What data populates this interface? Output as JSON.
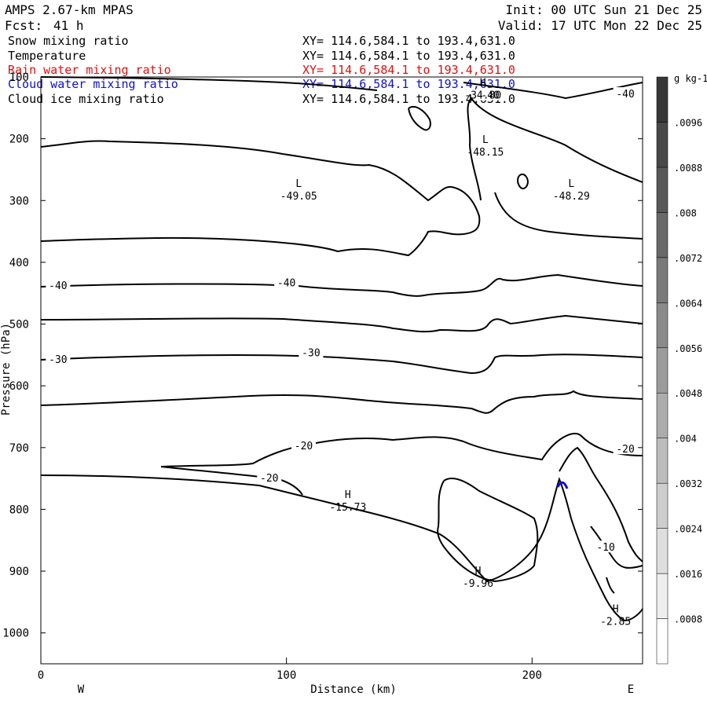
{
  "header": {
    "model": "AMPS 2.67-km MPAS",
    "fcst_label": "Fcst:",
    "fcst_hours": "41 h",
    "init": "Init: 00 UTC Sun 21 Dec 25",
    "valid": "Valid: 17 UTC Mon 22 Dec 25"
  },
  "fields": [
    {
      "name": "Snow mixing ratio",
      "range": "XY= 114.6,584.1 to 193.4,631.0",
      "color": "#000000"
    },
    {
      "name": "Temperature",
      "range": "XY= 114.6,584.1 to 193.4,631.0",
      "color": "#000000"
    },
    {
      "name": "Rain water mixing ratio",
      "range": "XY= 114.6,584.1 to 193.4,631.0",
      "color": "#e01010"
    },
    {
      "name": "Cloud water mixing ratio",
      "range": "XY= 114.6,584.1 to 193.4,631.0",
      "color": "#1010d0"
    },
    {
      "name": "Cloud ice mixing ratio",
      "range": "XY= 114.6,584.1 to 193.4,631.0",
      "color": "#000000"
    }
  ],
  "chart_data": {
    "type": "contour cross-section",
    "xlabel": "Distance (km)",
    "ylabel": "Pressure (hPa)",
    "xlim": [
      0,
      245
    ],
    "ylim": [
      1050,
      100
    ],
    "x_ticks": [
      0,
      100,
      200
    ],
    "y_ticks": [
      100,
      200,
      300,
      400,
      500,
      600,
      700,
      800,
      900,
      1000
    ],
    "x_end_labels": {
      "left": "W",
      "right": "E"
    },
    "contour_labels": [
      {
        "text": "-40",
        "x": 183,
        "p": 130
      },
      {
        "text": "-40",
        "x": 238,
        "p": 128
      },
      {
        "text": "-40",
        "x": 7,
        "p": 438
      },
      {
        "text": "-40",
        "x": 100,
        "p": 434
      },
      {
        "text": "-30",
        "x": 7,
        "p": 558
      },
      {
        "text": "-30",
        "x": 110,
        "p": 547
      },
      {
        "text": "-20",
        "x": 107,
        "p": 698
      },
      {
        "text": "-20",
        "x": 93,
        "p": 750
      },
      {
        "text": "-20",
        "x": 238,
        "p": 703
      },
      {
        "text": "-10",
        "x": 230,
        "p": 862
      }
    ],
    "extrema": [
      {
        "type": "H",
        "value": "-34.80",
        "x": 180,
        "p": 130
      },
      {
        "type": "L",
        "value": "-48.15",
        "x": 181,
        "p": 222
      },
      {
        "type": "L",
        "value": "-49.05",
        "x": 105,
        "p": 293
      },
      {
        "type": "L",
        "value": "-48.29",
        "x": 216,
        "p": 293
      },
      {
        "type": "H",
        "value": "-15.73",
        "x": 125,
        "p": 797
      },
      {
        "type": "H",
        "value": "-9.96",
        "x": 178,
        "p": 920
      },
      {
        "type": "H",
        "value": "-2.85",
        "x": 234,
        "p": 982
      }
    ],
    "colorbar": {
      "unit": "g kg-1",
      "levels": [
        ".0008",
        ".0016",
        ".0024",
        ".0032",
        ".004",
        ".0048",
        ".0056",
        ".0064",
        ".0072",
        ".008",
        ".0088",
        ".0096"
      ]
    }
  }
}
